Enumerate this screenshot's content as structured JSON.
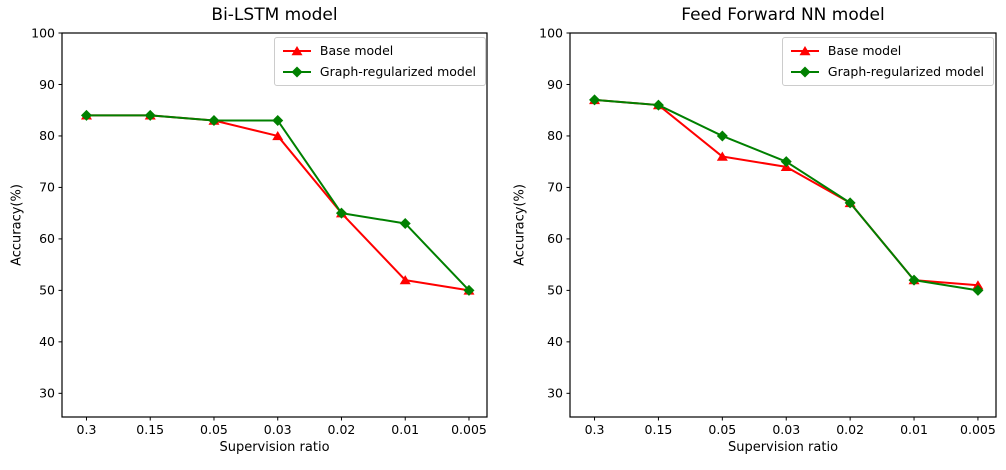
{
  "figure": {
    "background": "#ffffff",
    "text_color": "#000000",
    "axis_color": "#000000",
    "legend_border_color": "#cccccc"
  },
  "chart_data": [
    {
      "type": "line",
      "title": "Bi-LSTM model",
      "xlabel": "Supervision ratio",
      "ylabel": "Accuracy(%)",
      "categories": [
        "0.3",
        "0.15",
        "0.05",
        "0.03",
        "0.02",
        "0.01",
        "0.005"
      ],
      "yticks": [
        30,
        40,
        50,
        60,
        70,
        80,
        90,
        100
      ],
      "ylim": [
        25.4,
        100
      ],
      "grid": false,
      "legend_position": "upper right",
      "series": [
        {
          "name": "Base model",
          "color": "#ff0000",
          "marker": "triangle",
          "values": [
            84,
            84,
            83,
            80,
            65,
            52,
            50
          ]
        },
        {
          "name": "Graph-regularized model",
          "color": "#008000",
          "marker": "diamond",
          "values": [
            84,
            84,
            83,
            83,
            65,
            63,
            50
          ]
        }
      ]
    },
    {
      "type": "line",
      "title": "Feed Forward NN model",
      "xlabel": "Supervision ratio",
      "ylabel": "Accuracy(%)",
      "categories": [
        "0.3",
        "0.15",
        "0.05",
        "0.03",
        "0.02",
        "0.01",
        "0.005"
      ],
      "yticks": [
        30,
        40,
        50,
        60,
        70,
        80,
        90,
        100
      ],
      "ylim": [
        25.4,
        100
      ],
      "grid": false,
      "legend_position": "upper right",
      "series": [
        {
          "name": "Base model",
          "color": "#ff0000",
          "marker": "triangle",
          "values": [
            87,
            86,
            76,
            74,
            67,
            52,
            51
          ]
        },
        {
          "name": "Graph-regularized model",
          "color": "#008000",
          "marker": "diamond",
          "values": [
            87,
            86,
            80,
            75,
            67,
            52,
            50
          ]
        }
      ]
    }
  ]
}
